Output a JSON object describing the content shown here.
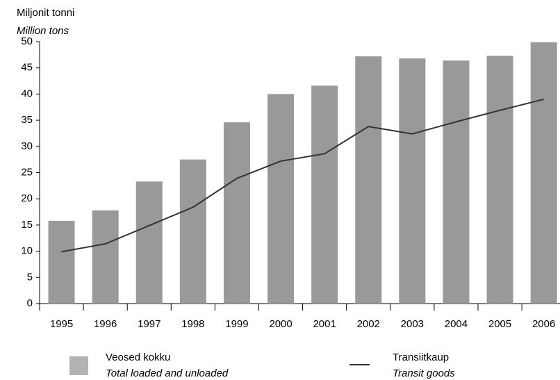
{
  "chart_data": {
    "type": "bar-line",
    "y_label": "Miljonit tonni",
    "y_label_en": "Million tons",
    "categories": [
      "1995",
      "1996",
      "1997",
      "1998",
      "1999",
      "2000",
      "2001",
      "2002",
      "2003",
      "2004",
      "2005",
      "2006"
    ],
    "series": [
      {
        "name": "Veosed kokku",
        "name_en": "Total loaded and unloaded",
        "type": "bar",
        "color": "#999999",
        "values": [
          15.8,
          17.8,
          23.3,
          27.5,
          34.6,
          40.0,
          41.6,
          47.2,
          46.8,
          46.4,
          47.3,
          49.9
        ]
      },
      {
        "name": "Transiitkaup",
        "name_en": "Transit goods",
        "type": "line",
        "color": "#333333",
        "values": [
          9.9,
          11.4,
          14.9,
          18.4,
          23.9,
          27.2,
          28.6,
          33.8,
          32.4,
          34.7,
          36.9,
          39.0
        ]
      }
    ],
    "ylim": [
      0,
      50
    ],
    "yticks": [
      0,
      5,
      10,
      15,
      20,
      25,
      30,
      35,
      40,
      45,
      50
    ],
    "grid": false
  }
}
